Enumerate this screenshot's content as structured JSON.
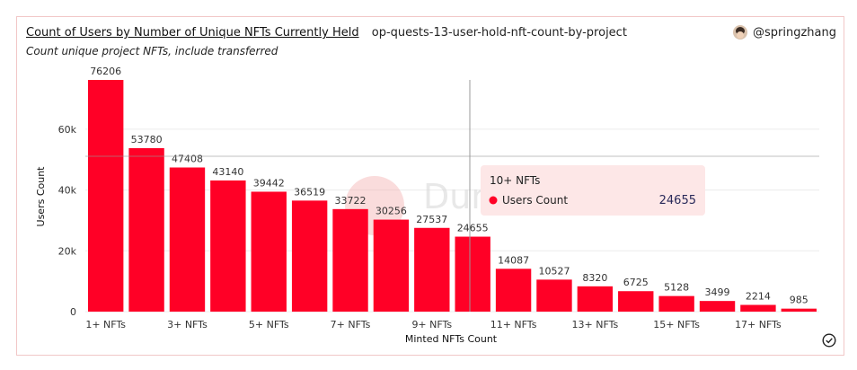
{
  "header": {
    "title": "Count of Users by Number of Unique NFTs Currently Held",
    "query_name": "op-quests-13-user-hold-nft-count-by-project",
    "subtitle": "Count unique project NFTs, include transferred",
    "author": "@springzhang"
  },
  "watermark": "Dune",
  "tooltip": {
    "title": "10+ NFTs",
    "series_label": "Users Count",
    "value": "24655"
  },
  "colors": {
    "bar": "#ff0026",
    "tooltip_bg": "#fde7e7",
    "border": "#f1c7c7"
  },
  "chart_data": {
    "type": "bar",
    "categories": [
      "1+ NFTs",
      "2+ NFTs",
      "3+ NFTs",
      "4+ NFTs",
      "5+ NFTs",
      "6+ NFTs",
      "7+ NFTs",
      "8+ NFTs",
      "9+ NFTs",
      "10+ NFTs",
      "11+ NFTs",
      "12+ NFTs",
      "13+ NFTs",
      "14+ NFTs",
      "15+ NFTs",
      "16+ NFTs",
      "17+ NFTs",
      "18+ NFTs"
    ],
    "visible_tick_labels": [
      "1+ NFTs",
      "3+ NFTs",
      "5+ NFTs",
      "7+ NFTs",
      "9+ NFTs",
      "11+ NFTs",
      "13+ NFTs",
      "15+ NFTs",
      "17+ NFTs"
    ],
    "series": [
      {
        "name": "Users Count",
        "values": [
          76206,
          53780,
          47408,
          43140,
          39442,
          36519,
          33722,
          30256,
          27537,
          24655,
          14087,
          10527,
          8320,
          6725,
          5128,
          3499,
          2214,
          985
        ]
      }
    ],
    "xlabel": "Minted NFTs Count",
    "ylabel": "Users Count",
    "yticks": [
      0,
      20000,
      40000,
      60000
    ],
    "ytick_labels": [
      "0",
      "20k",
      "40k",
      "60k"
    ],
    "ylim": [
      0,
      76206
    ],
    "grid": true,
    "hovered_category": "10+ NFTs"
  }
}
